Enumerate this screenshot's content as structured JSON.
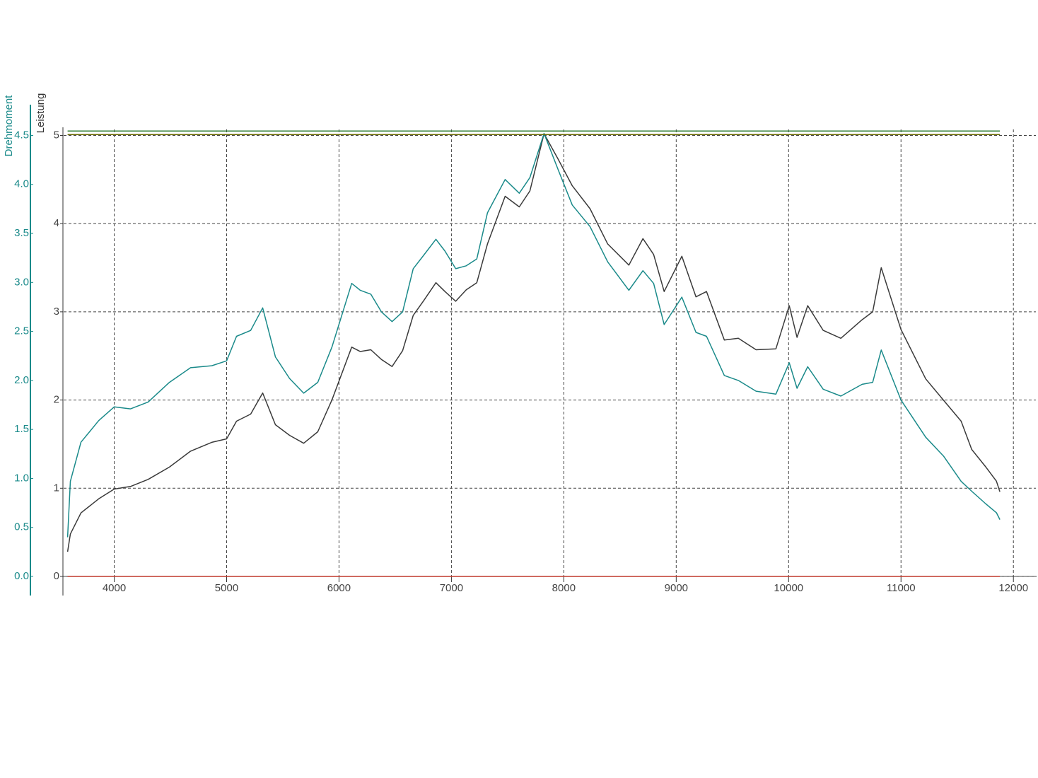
{
  "chart_data": {
    "type": "line",
    "ylabel": "Leistung",
    "y2label": "Drehmoment",
    "x": [
      3585,
      3610,
      3704,
      3862,
      4000,
      4145,
      4302,
      4491,
      4679,
      4868,
      5000,
      5088,
      5214,
      5321,
      5434,
      5560,
      5686,
      5811,
      5937,
      6113,
      6189,
      6283,
      6377,
      6472,
      6566,
      6660,
      6755,
      6862,
      6943,
      7038,
      7132,
      7226,
      7321,
      7478,
      7604,
      7698,
      7824,
      7950,
      8075,
      8233,
      8390,
      8579,
      8704,
      8799,
      8893,
      9050,
      9176,
      9270,
      9428,
      9553,
      9711,
      9887,
      10006,
      10075,
      10170,
      10308,
      10465,
      10654,
      10748,
      10824,
      11000,
      11220,
      11377,
      11535,
      11629,
      11755,
      11849,
      11880
    ],
    "series": [
      {
        "color": "#3a3a3a",
        "values": [
          0.28,
          0.48,
          0.72,
          0.88,
          0.99,
          1.02,
          1.1,
          1.24,
          1.42,
          1.52,
          1.56,
          1.76,
          1.84,
          2.08,
          1.72,
          1.6,
          1.51,
          1.64,
          2.0,
          2.6,
          2.55,
          2.57,
          2.46,
          2.38,
          2.56,
          2.96,
          3.13,
          3.33,
          3.23,
          3.12,
          3.25,
          3.33,
          3.77,
          4.31,
          4.19,
          4.37,
          5.02,
          4.73,
          4.43,
          4.17,
          3.77,
          3.53,
          3.83,
          3.65,
          3.23,
          3.63,
          3.17,
          3.23,
          2.68,
          2.7,
          2.57,
          2.58,
          3.07,
          2.71,
          3.07,
          2.79,
          2.7,
          2.91,
          3.0,
          3.5,
          2.8,
          2.24,
          2.0,
          1.76,
          1.44,
          1.24,
          1.08,
          0.96
        ]
      },
      {
        "color": "#1a8a8a",
        "axis": "y2",
        "values": [
          0.4,
          0.97,
          1.37,
          1.59,
          1.73,
          1.71,
          1.78,
          1.98,
          2.13,
          2.15,
          2.2,
          2.45,
          2.51,
          2.74,
          2.24,
          2.02,
          1.87,
          1.98,
          2.34,
          2.99,
          2.92,
          2.88,
          2.7,
          2.6,
          2.7,
          3.14,
          3.28,
          3.44,
          3.32,
          3.14,
          3.17,
          3.24,
          3.71,
          4.05,
          3.91,
          4.07,
          4.52,
          4.15,
          3.79,
          3.57,
          3.21,
          2.92,
          3.12,
          2.99,
          2.57,
          2.85,
          2.49,
          2.45,
          2.05,
          2.0,
          1.89,
          1.86,
          2.18,
          1.92,
          2.14,
          1.91,
          1.84,
          1.96,
          1.98,
          2.31,
          1.8,
          1.42,
          1.23,
          0.97,
          0.87,
          0.74,
          0.65,
          0.58
        ]
      },
      {
        "color": "#2e7d32",
        "x": [
          3585,
          11880
        ],
        "values": [
          5.05,
          5.05
        ]
      },
      {
        "color": "#6b6b00",
        "x": [
          3585,
          11880
        ],
        "values": [
          5.01,
          5.01
        ]
      },
      {
        "color": "#c0392b",
        "x": [
          3585,
          11880
        ],
        "values": [
          0,
          0
        ]
      }
    ],
    "xlim": [
      3550,
      12200
    ],
    "xticks": [
      4000,
      5000,
      6000,
      7000,
      8000,
      9000,
      10000,
      11000,
      12000
    ],
    "ylim": [
      0,
      5.1
    ],
    "yticks": [
      0,
      1,
      2,
      3,
      4,
      5
    ],
    "y2lim": [
      0,
      4.59
    ],
    "y2ticks": [
      {
        "value": 0,
        "label": "0.0"
      },
      0.5,
      {
        "value": 1,
        "label": "1.0"
      },
      1.5,
      {
        "value": 2,
        "label": "2.0"
      },
      2.5,
      {
        "value": 3,
        "label": "3.0"
      },
      3.5,
      {
        "value": 4,
        "label": "4.0"
      },
      4.5
    ],
    "grid": true
  }
}
